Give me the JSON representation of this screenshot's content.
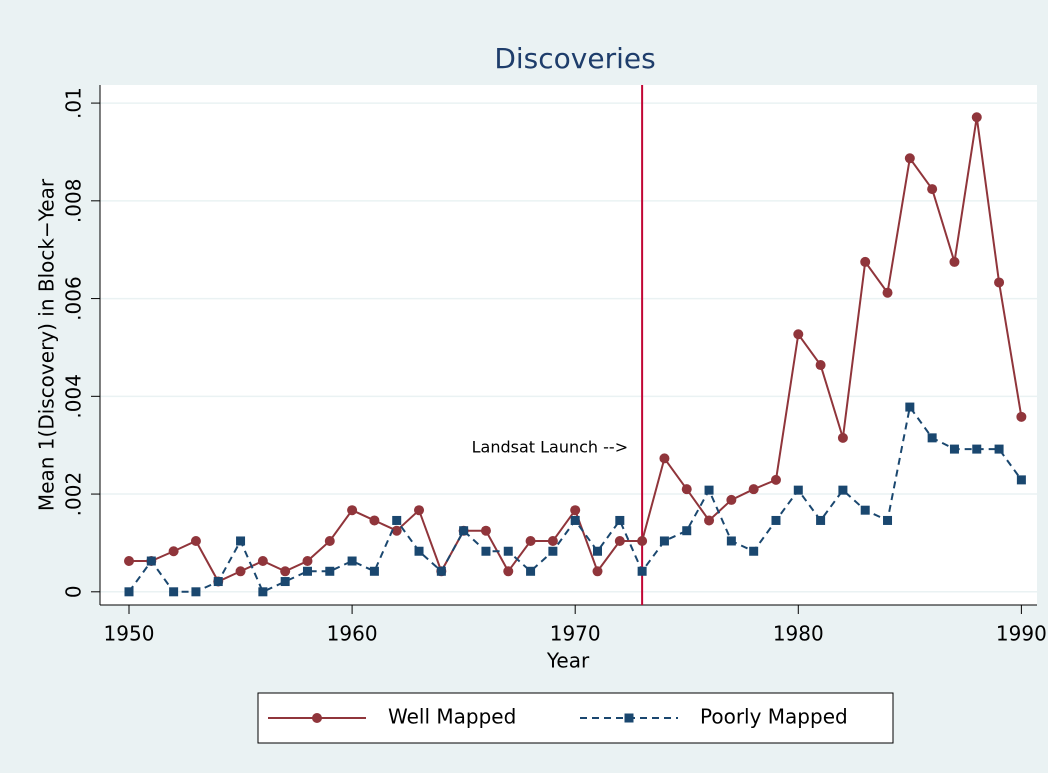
{
  "chart_data": {
    "type": "line",
    "title": "Discoveries",
    "x_label": "Year",
    "y_label": "Mean 1(Discovery) in Block−Year",
    "x": [
      1950,
      1951,
      1952,
      1953,
      1954,
      1955,
      1956,
      1957,
      1958,
      1959,
      1960,
      1961,
      1962,
      1963,
      1964,
      1965,
      1966,
      1967,
      1968,
      1969,
      1970,
      1971,
      1972,
      1973,
      1974,
      1975,
      1976,
      1977,
      1978,
      1979,
      1980,
      1981,
      1982,
      1983,
      1984,
      1985,
      1986,
      1987,
      1988,
      1989,
      1990
    ],
    "series": [
      {
        "name": "Well Mapped",
        "color": "#90353b",
        "dash": "solid",
        "marker": "circle",
        "values": [
          0.00063,
          0.00063,
          0.00083,
          0.00104,
          0.00021,
          0.00042,
          0.00063,
          0.00042,
          0.00063,
          0.00104,
          0.00167,
          0.00146,
          0.00125,
          0.00167,
          0.00042,
          0.00125,
          0.00125,
          0.00042,
          0.00104,
          0.00104,
          0.00167,
          0.00042,
          0.00104,
          0.00104,
          0.00273,
          0.0021,
          0.00146,
          0.00188,
          0.0021,
          0.00229,
          0.00527,
          0.00464,
          0.00315,
          0.00675,
          0.00612,
          0.00887,
          0.00824,
          0.00675,
          0.00971,
          0.00633,
          0.00358
        ]
      },
      {
        "name": "Poorly Mapped",
        "color": "#1a476f",
        "dash": "dashed",
        "marker": "square",
        "values": [
          0,
          0.00063,
          0,
          0,
          0.00021,
          0.00104,
          0,
          0.00021,
          0.00042,
          0.00042,
          0.00063,
          0.00042,
          0.00146,
          0.00083,
          0.00042,
          0.00125,
          0.00083,
          0.00083,
          0.00042,
          0.00083,
          0.00146,
          0.00083,
          0.00146,
          0.00042,
          0.00104,
          0.00125,
          0.00208,
          0.00104,
          0.00083,
          0.00146,
          0.00208,
          0.00146,
          0.00208,
          0.00167,
          0.00146,
          0.00378,
          0.00315,
          0.00292,
          0.00292,
          0.00292,
          0.00229
        ]
      }
    ],
    "xlim": [
      1948.7,
      1990.7
    ],
    "xticks": [
      1950,
      1960,
      1970,
      1980,
      1990
    ],
    "ylim": [
      -0.00027,
      0.01037
    ],
    "yticks": [
      0,
      {
        "value": 0.002,
        "label": ".002"
      },
      {
        "value": 0.004,
        "label": ".004"
      },
      {
        "value": 0.006,
        "label": ".006"
      },
      {
        "value": 0.008,
        "label": ".008"
      },
      {
        "value": 0.01,
        "label": ".01"
      }
    ],
    "grid": true,
    "legend": "bottom",
    "vline": {
      "x": 1973,
      "color": "#c10534",
      "annotation": "Landsat Launch -->"
    }
  }
}
